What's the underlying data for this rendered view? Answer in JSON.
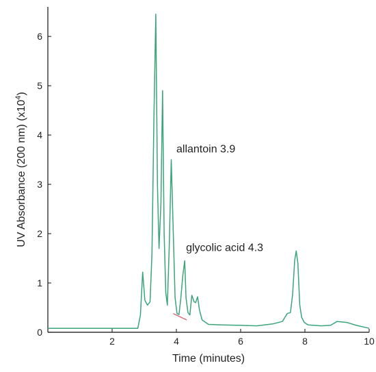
{
  "chart_data": {
    "type": "line",
    "title": "",
    "xlabel": "Time (minutes)",
    "ylabel_main": "UV Absorbance (200 nm) (x10",
    "ylabel_exp": "4",
    "ylabel_close": ")",
    "xlim": [
      0,
      10
    ],
    "ylim": [
      0,
      6.6
    ],
    "grid": false,
    "x_ticks": [
      2,
      4,
      6,
      8,
      10
    ],
    "x_tick_labels": [
      "2",
      "4",
      "6",
      "8",
      "10"
    ],
    "y_ticks": [
      0,
      1,
      2,
      3,
      4,
      5,
      6
    ],
    "y_tick_labels": [
      "0",
      "1",
      "2",
      "3",
      "4",
      "5",
      "6"
    ],
    "annotations": [
      {
        "text": "allantoin 3.9",
        "x": 4.0,
        "y": 3.65
      },
      {
        "text": "glycolic acid 4.3",
        "x": 4.3,
        "y": 1.65
      }
    ],
    "series": [
      {
        "color": "#3aa57a",
        "x": [
          0,
          1,
          2,
          2.8,
          2.88,
          2.95,
          3.02,
          3.1,
          3.18,
          3.24,
          3.3,
          3.36,
          3.41,
          3.46,
          3.52,
          3.57,
          3.62,
          3.67,
          3.72,
          3.78,
          3.84,
          3.9,
          3.96,
          4.02,
          4.08,
          4.14,
          4.2,
          4.26,
          4.3,
          4.36,
          4.42,
          4.48,
          4.55,
          4.6,
          4.66,
          4.72,
          4.8,
          5.0,
          5.4,
          6.0,
          6.5,
          7.0,
          7.3,
          7.45,
          7.55,
          7.62,
          7.68,
          7.73,
          7.78,
          7.84,
          7.9,
          7.98,
          8.1,
          8.5,
          8.8,
          9.0,
          9.3,
          9.6,
          10.0
        ],
        "y": [
          0.08,
          0.08,
          0.08,
          0.08,
          0.35,
          1.22,
          0.65,
          0.55,
          0.62,
          1.6,
          4.3,
          6.45,
          3.0,
          1.7,
          2.6,
          4.9,
          2.0,
          0.8,
          0.55,
          1.8,
          3.5,
          2.1,
          0.7,
          0.38,
          0.36,
          0.7,
          1.15,
          1.45,
          0.7,
          0.4,
          0.35,
          0.75,
          0.62,
          0.6,
          0.72,
          0.45,
          0.25,
          0.16,
          0.15,
          0.14,
          0.13,
          0.17,
          0.22,
          0.38,
          0.4,
          0.78,
          1.45,
          1.65,
          1.4,
          0.55,
          0.3,
          0.2,
          0.15,
          0.13,
          0.14,
          0.22,
          0.2,
          0.14,
          0.08
        ]
      }
    ],
    "baseline_marks": [
      {
        "color": "#e0606c",
        "x": [
          3.9,
          4.32
        ],
        "y": [
          0.38,
          0.25
        ]
      }
    ]
  }
}
